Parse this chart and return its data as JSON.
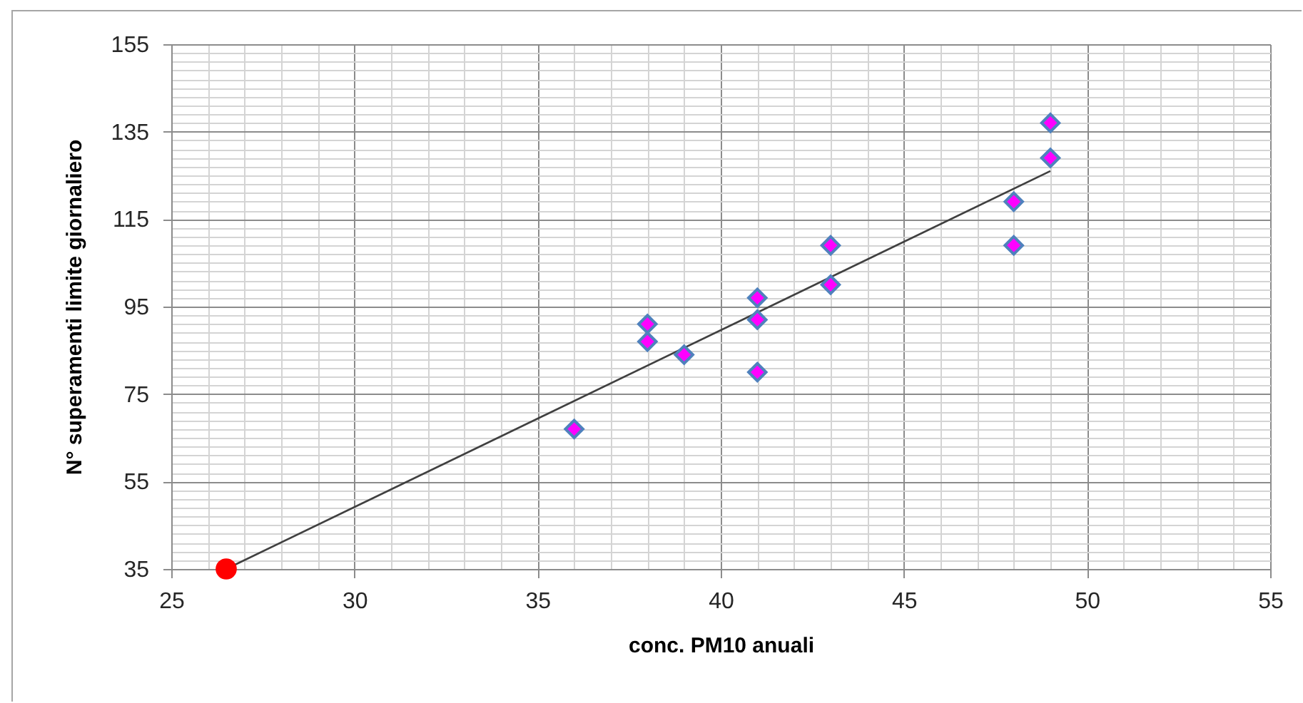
{
  "chart_data": {
    "type": "scatter",
    "xlabel": "conc. PM10 anuali",
    "ylabel": "N° superamenti limite giornaliero",
    "xlim": [
      25,
      55
    ],
    "xticks": [
      25,
      {
        "value": 26,
        "label": null
      },
      {
        "value": 27,
        "label": null
      },
      {
        "value": 28,
        "label": null
      },
      {
        "value": 29,
        "label": null
      },
      30,
      {
        "value": 31,
        "label": null
      },
      {
        "value": 32,
        "label": null
      },
      {
        "value": 33,
        "label": null
      },
      {
        "value": 34,
        "label": null
      },
      35,
      {
        "value": 36,
        "label": null
      },
      {
        "value": 37,
        "label": null
      },
      {
        "value": 38,
        "label": null
      },
      {
        "value": 39,
        "label": null
      },
      40,
      {
        "value": 41,
        "label": null
      },
      {
        "value": 42,
        "label": null
      },
      {
        "value": 43,
        "label": null
      },
      {
        "value": 44,
        "label": null
      },
      45,
      {
        "value": 46,
        "label": null
      },
      {
        "value": 47,
        "label": null
      },
      {
        "value": 48,
        "label": null
      },
      {
        "value": 49,
        "label": null
      },
      50,
      {
        "value": 51,
        "label": null
      },
      {
        "value": 52,
        "label": null
      },
      {
        "value": 53,
        "label": null
      },
      {
        "value": 54,
        "label": null
      },
      55
    ],
    "ylim": [
      35,
      155
    ],
    "yticks": [
      35,
      {
        "value": 37,
        "label": null
      },
      {
        "value": 39,
        "label": null
      },
      {
        "value": 41,
        "label": null
      },
      {
        "value": 43,
        "label": null
      },
      {
        "value": 45,
        "label": null
      },
      {
        "value": 47,
        "label": null
      },
      {
        "value": 49,
        "label": null
      },
      {
        "value": 51,
        "label": null
      },
      {
        "value": 53,
        "label": null
      },
      55,
      {
        "value": 57,
        "label": null
      },
      {
        "value": 59,
        "label": null
      },
      {
        "value": 61,
        "label": null
      },
      {
        "value": 63,
        "label": null
      },
      {
        "value": 65,
        "label": null
      },
      {
        "value": 67,
        "label": null
      },
      {
        "value": 69,
        "label": null
      },
      {
        "value": 71,
        "label": null
      },
      {
        "value": 73,
        "label": null
      },
      75,
      {
        "value": 77,
        "label": null
      },
      {
        "value": 79,
        "label": null
      },
      {
        "value": 81,
        "label": null
      },
      {
        "value": 83,
        "label": null
      },
      {
        "value": 85,
        "label": null
      },
      {
        "value": 87,
        "label": null
      },
      {
        "value": 89,
        "label": null
      },
      {
        "value": 91,
        "label": null
      },
      {
        "value": 93,
        "label": null
      },
      95,
      {
        "value": 97,
        "label": null
      },
      {
        "value": 99,
        "label": null
      },
      {
        "value": 101,
        "label": null
      },
      {
        "value": 103,
        "label": null
      },
      {
        "value": 105,
        "label": null
      },
      {
        "value": 107,
        "label": null
      },
      {
        "value": 109,
        "label": null
      },
      {
        "value": 111,
        "label": null
      },
      {
        "value": 113,
        "label": null
      },
      115,
      {
        "value": 117,
        "label": null
      },
      {
        "value": 119,
        "label": null
      },
      {
        "value": 121,
        "label": null
      },
      {
        "value": 123,
        "label": null
      },
      {
        "value": 125,
        "label": null
      },
      {
        "value": 127,
        "label": null
      },
      {
        "value": 129,
        "label": null
      },
      {
        "value": 131,
        "label": null
      },
      {
        "value": 133,
        "label": null
      },
      135,
      {
        "value": 137,
        "label": null
      },
      {
        "value": 139,
        "label": null
      },
      {
        "value": 141,
        "label": null
      },
      {
        "value": 143,
        "label": null
      },
      {
        "value": 145,
        "label": null
      },
      {
        "value": 147,
        "label": null
      },
      {
        "value": 149,
        "label": null
      },
      {
        "value": 151,
        "label": null
      },
      {
        "value": 153,
        "label": null
      },
      155
    ],
    "grid": true,
    "series": [
      {
        "type": "line",
        "color": "#404040",
        "line_style": "solid",
        "marker": "none",
        "x": [
          26.5,
          49
        ],
        "values": [
          35,
          126
        ]
      },
      {
        "type": "scatter",
        "color": "#ff00ff",
        "marker": "diamond",
        "x": [
          36,
          38,
          38,
          39,
          41,
          41,
          41,
          43,
          43,
          48,
          48,
          49,
          49
        ],
        "values": [
          67,
          91,
          87,
          84,
          97,
          92,
          80,
          109,
          100,
          119,
          109,
          137,
          129
        ]
      },
      {
        "type": "scatter",
        "color": "#ff0000",
        "marker": "circle",
        "x": [
          26.5
        ],
        "values": [
          35
        ]
      }
    ]
  }
}
